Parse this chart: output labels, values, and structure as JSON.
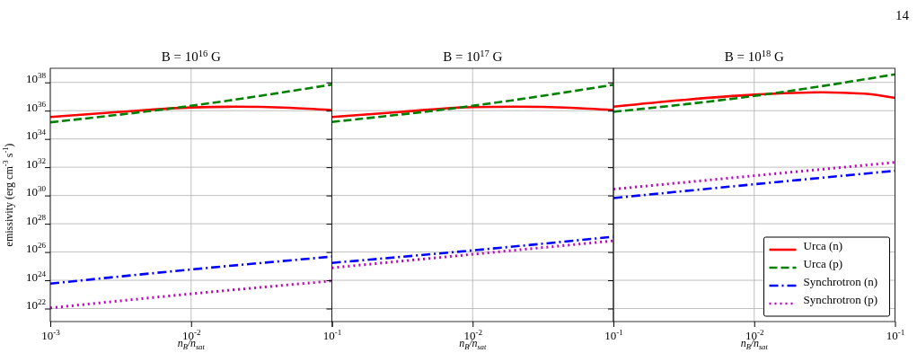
{
  "chart_data": [
    {
      "type": "line",
      "title": "B = 10$^{16}$ G",
      "ylabel": "emissivity (erg cm$^{-3}$ s$^{-1}$)",
      "xlabel": "n$_{B}$/n$_{sat}$",
      "annotations": [
        "14"
      ],
      "log": "xy",
      "grid": true,
      "xlim": [
        0.001,
        0.1
      ],
      "ylim": [
        1.2e+21,
        1e+39
      ],
      "xticks": [
        {
          "value": 0.001,
          "label": "10$^{-3}$"
        },
        {
          "value": 0.01,
          "label": "10$^{-2}$"
        },
        {
          "value": 0.1,
          "label": "10$^{-1}$"
        }
      ],
      "yticks": [
        {
          "value": 1e+22,
          "label": "10$^{22}$"
        },
        {
          "value": 1e+24,
          "label": "10$^{24}$"
        },
        {
          "value": 1e+26,
          "label": "10$^{26}$"
        },
        {
          "value": 1e+28,
          "label": "10$^{28}$"
        },
        {
          "value": 1e+30,
          "label": "10$^{30}$"
        },
        {
          "value": 1e+32,
          "label": "10$^{32}$"
        },
        {
          "value": 1e+34,
          "label": "10$^{34}$"
        },
        {
          "value": 1e+36,
          "label": "10$^{36}$"
        },
        {
          "value": 1e+38,
          "label": "10$^{38}$"
        }
      ],
      "series": [
        {
          "color": "#ff0000",
          "line_style": "solid",
          "x": [
            0.001,
            0.003,
            0.01,
            0.02,
            0.05,
            0.1
          ],
          "values": [
            3.6e+35,
            8e+35,
            1.7e+36,
            1.9e+36,
            1.6e+36,
            1.1e+36
          ]
        },
        {
          "color": "#008000",
          "line_style": "dashed",
          "x": [
            0.001,
            0.01,
            0.1
          ],
          "values": [
            1.5e+35,
            2.2e+36,
            7e+37
          ]
        },
        {
          "color": "#0000ff",
          "line_style": "dashdot",
          "x": [
            0.001,
            0.01,
            0.1
          ],
          "values": [
            5.8e+23,
            5.8e+24,
            4.7e+25
          ]
        },
        {
          "color": "#bf00bf",
          "line_style": "dotted",
          "x": [
            0.001,
            0.01,
            0.1
          ],
          "values": [
            1.1e+22,
            1.1e+23,
            9e+23
          ]
        }
      ]
    },
    {
      "type": "line",
      "title": "B = 10$^{17}$ G",
      "xlabel": "n$_{B}$/n$_{sat}$",
      "log": "xy",
      "grid": true,
      "tick_labels": "x",
      "xlim": [
        0.001,
        0.1
      ],
      "ylim": [
        1.2e+21,
        1e+39
      ],
      "xticks": [
        {
          "value": 0.001,
          "label": null
        },
        {
          "value": 0.01,
          "label": "10$^{-2}$"
        },
        {
          "value": 0.1,
          "label": "10$^{-1}$"
        }
      ],
      "yticks": [
        {
          "value": 1e+22,
          "label": null
        },
        {
          "value": 1e+24,
          "label": null
        },
        {
          "value": 1e+26,
          "label": null
        },
        {
          "value": 1e+28,
          "label": null
        },
        {
          "value": 1e+30,
          "label": null
        },
        {
          "value": 1e+32,
          "label": null
        },
        {
          "value": 1e+34,
          "label": null
        },
        {
          "value": 1e+36,
          "label": null
        },
        {
          "value": 1e+38,
          "label": null
        }
      ],
      "series": [
        {
          "color": "#ff0000",
          "line_style": "solid",
          "x": [
            0.001,
            0.003,
            0.01,
            0.02,
            0.05,
            0.1
          ],
          "values": [
            3.6e+35,
            8e+35,
            1.8e+36,
            1.9e+36,
            1.6e+36,
            1.1e+36
          ]
        },
        {
          "color": "#008000",
          "line_style": "dashed",
          "x": [
            0.001,
            0.01,
            0.1
          ],
          "values": [
            1.6e+35,
            2.2e+36,
            6.8e+37
          ]
        },
        {
          "color": "#0000ff",
          "line_style": "dashdot",
          "x": [
            0.001,
            0.01,
            0.1
          ],
          "values": [
            1.7e+25,
            1.3e+26,
            1.2e+27
          ]
        },
        {
          "color": "#bf00bf",
          "line_style": "dotted",
          "x": [
            0.001,
            0.01,
            0.1
          ],
          "values": [
            7.6e+24,
            6.9e+25,
            6.2e+26
          ]
        }
      ]
    },
    {
      "type": "line",
      "title": "B = 10$^{18}$ G",
      "xlabel": "n$_{B}$/n$_{sat}$",
      "log": "xy",
      "grid": true,
      "tick_labels": "x",
      "legend": "bottom right",
      "xlim": [
        0.001,
        0.1
      ],
      "ylim": [
        1.2e+21,
        1e+39
      ],
      "xticks": [
        {
          "value": 0.001,
          "label": null
        },
        {
          "value": 0.01,
          "label": "10$^{-2}$"
        },
        {
          "value": 0.1,
          "label": "10$^{-1}$"
        }
      ],
      "yticks": [
        {
          "value": 1e+22,
          "label": null
        },
        {
          "value": 1e+24,
          "label": null
        },
        {
          "value": 1e+26,
          "label": null
        },
        {
          "value": 1e+28,
          "label": null
        },
        {
          "value": 1e+30,
          "label": null
        },
        {
          "value": 1e+32,
          "label": null
        },
        {
          "value": 1e+34,
          "label": null
        },
        {
          "value": 1e+36,
          "label": null
        },
        {
          "value": 1e+38,
          "label": null
        }
      ],
      "series": [
        {
          "name": "Urca (n)",
          "color": "#ff0000",
          "line_style": "solid",
          "x": [
            0.001,
            0.003,
            0.01,
            0.03,
            0.06,
            0.1
          ],
          "values": [
            1.9e+36,
            5.5e+36,
            1.35e+37,
            2e+37,
            1.6e+37,
            8e+36
          ]
        },
        {
          "name": "Urca (p)",
          "color": "#008000",
          "line_style": "dashed",
          "x": [
            0.001,
            0.01,
            0.1
          ],
          "values": [
            8.3e+35,
            1.1e+37,
            3.7e+38
          ]
        },
        {
          "name": "Synchrotron (n)",
          "color": "#0000ff",
          "line_style": "dashdot",
          "x": [
            0.001,
            0.01,
            0.1
          ],
          "values": [
            6.6e+29,
            6.2e+30,
            5.6e+31
          ]
        },
        {
          "name": "Synchrotron (p)",
          "color": "#bf00bf",
          "line_style": "dotted",
          "x": [
            0.001,
            0.01,
            0.1
          ],
          "values": [
            2.8e+30,
            2.5e+31,
            2.2e+32
          ]
        }
      ]
    }
  ]
}
